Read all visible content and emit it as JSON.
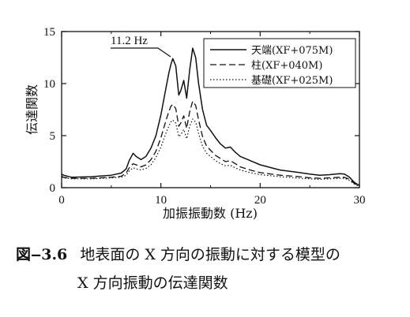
{
  "chart_data": {
    "type": "line",
    "xlabel": "加振振動数 (Hz)",
    "ylabel": "伝達関数",
    "xlim": [
      0,
      30
    ],
    "ylim": [
      0,
      15
    ],
    "xticks": [
      "0",
      "10",
      "20",
      "30"
    ],
    "yticks": [
      "0",
      "5",
      "10",
      "15"
    ],
    "grid": false,
    "legend_position": "top-right",
    "annotation": {
      "text": "11.2 Hz",
      "x": 11.2,
      "y": 12.5
    },
    "series": [
      {
        "name": "天端(XF+075M)",
        "style": "solid",
        "x": [
          0,
          0.2,
          1,
          3,
          5,
          6,
          6.5,
          6.8,
          7.2,
          7.5,
          8,
          8.5,
          9,
          9.5,
          10,
          10.5,
          10.8,
          11.0,
          11.2,
          11.5,
          11.8,
          12.0,
          12.3,
          12.6,
          12.9,
          13.2,
          13.5,
          13.8,
          14.2,
          14.6,
          15.0,
          15.5,
          16.0,
          16.5,
          17.0,
          17.5,
          18.0,
          19,
          20,
          22,
          24,
          25,
          26,
          27,
          28,
          28.5,
          29,
          29.5,
          30
        ],
        "y": [
          1.3,
          1.2,
          1.0,
          1.05,
          1.2,
          1.4,
          1.8,
          2.6,
          3.3,
          3.0,
          2.7,
          3.0,
          3.8,
          5.0,
          7.0,
          9.5,
          11.0,
          11.8,
          12.4,
          11.7,
          8.9,
          9.3,
          10.3,
          8.6,
          11.3,
          13.4,
          12.5,
          10.0,
          7.5,
          6.0,
          5.5,
          4.8,
          4.2,
          3.8,
          3.9,
          3.4,
          3.0,
          2.6,
          2.2,
          1.7,
          1.45,
          1.3,
          1.2,
          1.25,
          1.35,
          1.3,
          1.0,
          0.5,
          0.2
        ]
      },
      {
        "name": "柱(XF+040M)",
        "style": "dashed",
        "x": [
          0,
          0.2,
          1,
          3,
          5,
          6,
          6.5,
          6.8,
          7.2,
          7.5,
          8,
          8.5,
          9,
          9.5,
          10,
          10.5,
          10.8,
          11.0,
          11.2,
          11.5,
          11.8,
          12.0,
          12.3,
          12.6,
          12.9,
          13.2,
          13.5,
          13.8,
          14.2,
          14.6,
          15.0,
          15.5,
          16.0,
          16.5,
          17.0,
          17.5,
          18.0,
          19,
          20,
          22,
          24,
          25,
          26,
          27,
          28,
          28.5,
          29,
          29.5,
          30
        ],
        "y": [
          1.1,
          1.0,
          0.9,
          0.9,
          1.0,
          1.1,
          1.4,
          1.9,
          2.3,
          2.2,
          2.0,
          2.2,
          2.7,
          3.5,
          4.8,
          6.4,
          7.3,
          7.8,
          8.0,
          7.6,
          5.9,
          6.2,
          6.9,
          5.7,
          7.3,
          8.3,
          7.9,
          6.5,
          4.9,
          4.0,
          3.6,
          3.1,
          2.8,
          2.5,
          2.6,
          2.3,
          2.0,
          1.7,
          1.45,
          1.2,
          1.05,
          0.95,
          0.9,
          0.95,
          1.0,
          1.0,
          0.8,
          0.4,
          0.15
        ]
      },
      {
        "name": "基礎(XF+025M)",
        "style": "dotted",
        "x": [
          0,
          0.2,
          1,
          3,
          5,
          6,
          6.5,
          6.8,
          7.2,
          7.5,
          8,
          8.5,
          9,
          9.5,
          10,
          10.5,
          10.8,
          11.0,
          11.2,
          11.5,
          11.8,
          12.0,
          12.3,
          12.6,
          12.9,
          13.2,
          13.5,
          13.8,
          14.2,
          14.6,
          15.0,
          15.5,
          16.0,
          16.5,
          17.0,
          17.5,
          18.0,
          19,
          20,
          22,
          24,
          25,
          26,
          27,
          28,
          28.5,
          29,
          29.5,
          30
        ],
        "y": [
          1.0,
          0.95,
          0.85,
          0.85,
          0.95,
          1.0,
          1.2,
          1.6,
          1.9,
          1.8,
          1.7,
          1.85,
          2.2,
          2.9,
          3.9,
          5.2,
          5.9,
          6.3,
          6.5,
          6.2,
          4.9,
          5.1,
          5.6,
          4.7,
          5.9,
          6.6,
          6.3,
          5.2,
          4.0,
          3.3,
          3.0,
          2.6,
          2.3,
          2.1,
          2.15,
          1.9,
          1.7,
          1.45,
          1.25,
          1.05,
          0.9,
          0.85,
          0.8,
          0.85,
          0.9,
          0.9,
          0.7,
          0.35,
          0.1
        ]
      }
    ]
  },
  "caption": {
    "number": "図‒3.6",
    "line1": "地表面の X 方向の振動に対する模型の",
    "line2": "X 方向振動の伝達関数"
  }
}
